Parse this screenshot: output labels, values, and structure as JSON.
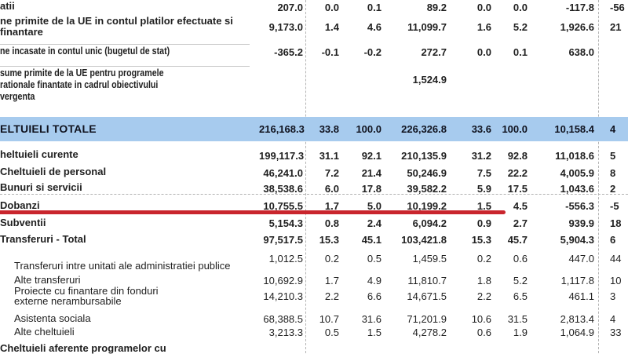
{
  "table": {
    "rows": [
      {
        "label_lines": [
          "atii"
        ],
        "bold": true,
        "condensed": false,
        "indent": false,
        "values": [
          "207.0",
          "0.0",
          "0.1",
          "89.2",
          "0.0",
          "0.0",
          "-117.8"
        ],
        "edge": "-56"
      },
      {
        "label_lines": [
          "ne primite de la UE in contul platilor efectuate si",
          "finantare"
        ],
        "bold": true,
        "condensed": false,
        "indent": false,
        "values": [
          "9,173.0",
          "1.4",
          "4.6",
          "11,099.7",
          "1.6",
          "5.2",
          "1,926.6"
        ],
        "edge": "21"
      },
      {
        "label_lines": [
          "ne incasate in contul unic (bugetul de stat)"
        ],
        "bold": true,
        "condensed": true,
        "indent": false,
        "values": [
          "-365.2",
          "-0.1",
          "-0.2",
          "272.7",
          "0.0",
          "0.1",
          "638.0"
        ],
        "edge": ""
      },
      {
        "label_lines": [
          " sume primite de la UE pentru programele",
          "rationale finantate in cadrul obiectivului",
          "vergenta"
        ],
        "bold": true,
        "condensed": true,
        "indent": false,
        "values": [
          "",
          "",
          "",
          "1,524.9",
          "",
          "",
          ""
        ],
        "edge": ""
      },
      {
        "label_lines": [
          "ELTUIELI TOTALE"
        ],
        "bold": true,
        "highlight": true,
        "condensed": false,
        "indent": false,
        "values": [
          "216,168.3",
          "33.8",
          "100.0",
          "226,326.8",
          "33.6",
          "100.0",
          "10,158.4"
        ],
        "edge": "4"
      },
      {
        "label_lines": [
          "heltuieli curente"
        ],
        "bold": true,
        "condensed": false,
        "indent": false,
        "values": [
          "199,117.3",
          "31.1",
          "92.1",
          "210,135.9",
          "31.2",
          "92.8",
          "11,018.6"
        ],
        "edge": "5"
      },
      {
        "label_lines": [
          "Cheltuieli de personal"
        ],
        "bold": true,
        "condensed": false,
        "indent": false,
        "values": [
          "46,241.0",
          "7.2",
          "21.4",
          "50,246.9",
          "7.5",
          "22.2",
          "4,005.9"
        ],
        "edge": "8"
      },
      {
        "label_lines": [
          "Bunuri si servicii"
        ],
        "bold": true,
        "condensed": false,
        "indent": false,
        "values": [
          "38,538.6",
          "6.0",
          "17.8",
          "39,582.2",
          "5.9",
          "17.5",
          "1,043.6"
        ],
        "edge": "2"
      },
      {
        "label_lines": [
          "Dobanzi"
        ],
        "bold": true,
        "condensed": false,
        "indent": false,
        "values": [
          "10,755.5",
          "1.7",
          "5.0",
          "10,199.2",
          "1.5",
          "4.5",
          "-556.3"
        ],
        "edge": "-5"
      },
      {
        "label_lines": [
          "Subventii"
        ],
        "bold": true,
        "condensed": false,
        "indent": false,
        "values": [
          "5,154.3",
          "0.8",
          "2.4",
          "6,094.2",
          "0.9",
          "2.7",
          "939.9"
        ],
        "edge": "18"
      },
      {
        "label_lines": [
          "Transferuri - Total"
        ],
        "bold": true,
        "condensed": false,
        "indent": false,
        "values": [
          "97,517.5",
          "15.3",
          "45.1",
          "103,421.8",
          "15.3",
          "45.7",
          "5,904.3"
        ],
        "edge": "6"
      },
      {
        "label_lines": [
          "Transferuri intre unitati ale administratiei publice"
        ],
        "bold": false,
        "condensed": false,
        "indent": true,
        "values": [
          "1,012.5",
          "0.2",
          "0.5",
          "1,459.5",
          "0.2",
          "0.6",
          "447.0"
        ],
        "edge": "44"
      },
      {
        "label_lines": [
          "Alte transferuri"
        ],
        "bold": false,
        "condensed": false,
        "indent": true,
        "values": [
          "10,692.9",
          "1.7",
          "4.9",
          "11,810.7",
          "1.8",
          "5.2",
          "1,117.8"
        ],
        "edge": "10"
      },
      {
        "label_lines": [
          "Proiecte cu finantare din fonduri",
          "externe nerambursabile"
        ],
        "bold": false,
        "condensed": false,
        "indent": true,
        "values": [
          "14,210.3",
          "2.2",
          "6.6",
          "14,671.5",
          "2.2",
          "6.5",
          "461.1"
        ],
        "edge": "3"
      },
      {
        "label_lines": [
          "Asistenta sociala"
        ],
        "bold": false,
        "condensed": false,
        "indent": true,
        "values": [
          "68,388.5",
          "10.7",
          "31.6",
          "71,201.9",
          "10.6",
          "31.5",
          "2,813.4"
        ],
        "edge": "4"
      },
      {
        "label_lines": [
          "Alte cheltuieli"
        ],
        "bold": false,
        "condensed": false,
        "indent": true,
        "values": [
          "3,213.3",
          "0.5",
          "1.5",
          "4,278.2",
          "0.6",
          "1.9",
          "1,064.9"
        ],
        "edge": "33"
      },
      {
        "label_lines": [
          "Cheltuieli aferente programelor cu"
        ],
        "bold": true,
        "condensed": false,
        "indent": false,
        "values": [
          "",
          "",
          "",
          "",
          "",
          "",
          ""
        ],
        "edge": ""
      }
    ]
  },
  "annotations": {
    "underline_row": "Dobanzi",
    "underline_color": "#c9252d",
    "highlight_row": "ELTUIELI TOTALE",
    "highlight_color": "#a7cbee"
  },
  "colors": {
    "background": "#ffffff",
    "text": "#1f1f1f",
    "dashed_grid": "#b3b3b3",
    "row_border": "#c9c9c9"
  }
}
